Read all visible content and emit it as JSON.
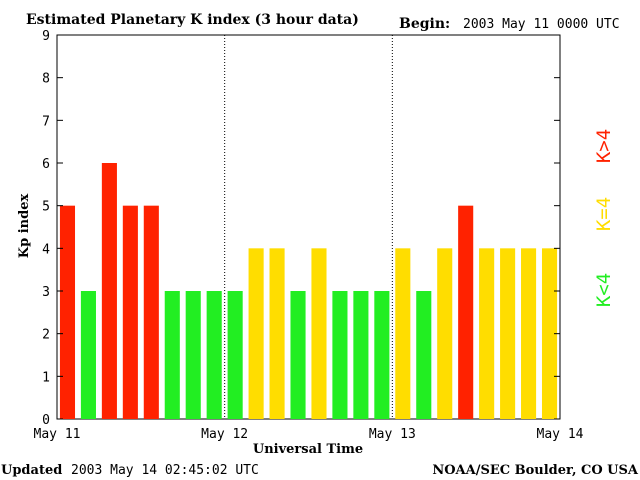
{
  "chart_data": {
    "type": "bar",
    "title": "Estimated Planetary K index (3 hour data)",
    "begin_label": "Begin:",
    "begin_value": "2003 May 11 0000 UTC",
    "xlabel": "Universal Time",
    "ylabel": "Kp index",
    "ylim": [
      0,
      9
    ],
    "yticks": [
      "0",
      "1",
      "2",
      "3",
      "4",
      "5",
      "6",
      "7",
      "8",
      "9"
    ],
    "xticks": [
      "May 11",
      "May 12",
      "May 13",
      "May 14"
    ],
    "values": [
      5,
      3,
      6,
      5,
      5,
      3,
      3,
      3,
      3,
      4,
      4,
      3,
      4,
      3,
      3,
      3,
      4,
      3,
      4,
      5,
      4,
      4,
      4,
      4
    ],
    "colors": {
      "below4": "#22ee22",
      "equal4": "#ffdd00",
      "above4": "#ff2200"
    },
    "legend": [
      {
        "label": "K>4",
        "color": "#ff2200"
      },
      {
        "label": "K=4",
        "color": "#ffdd00"
      },
      {
        "label": "K<4",
        "color": "#22ee22"
      }
    ]
  },
  "footer": {
    "updated_label": "Updated",
    "updated_value": "2003 May 14 02:45:02 UTC",
    "source": "NOAA/SEC Boulder, CO USA"
  }
}
